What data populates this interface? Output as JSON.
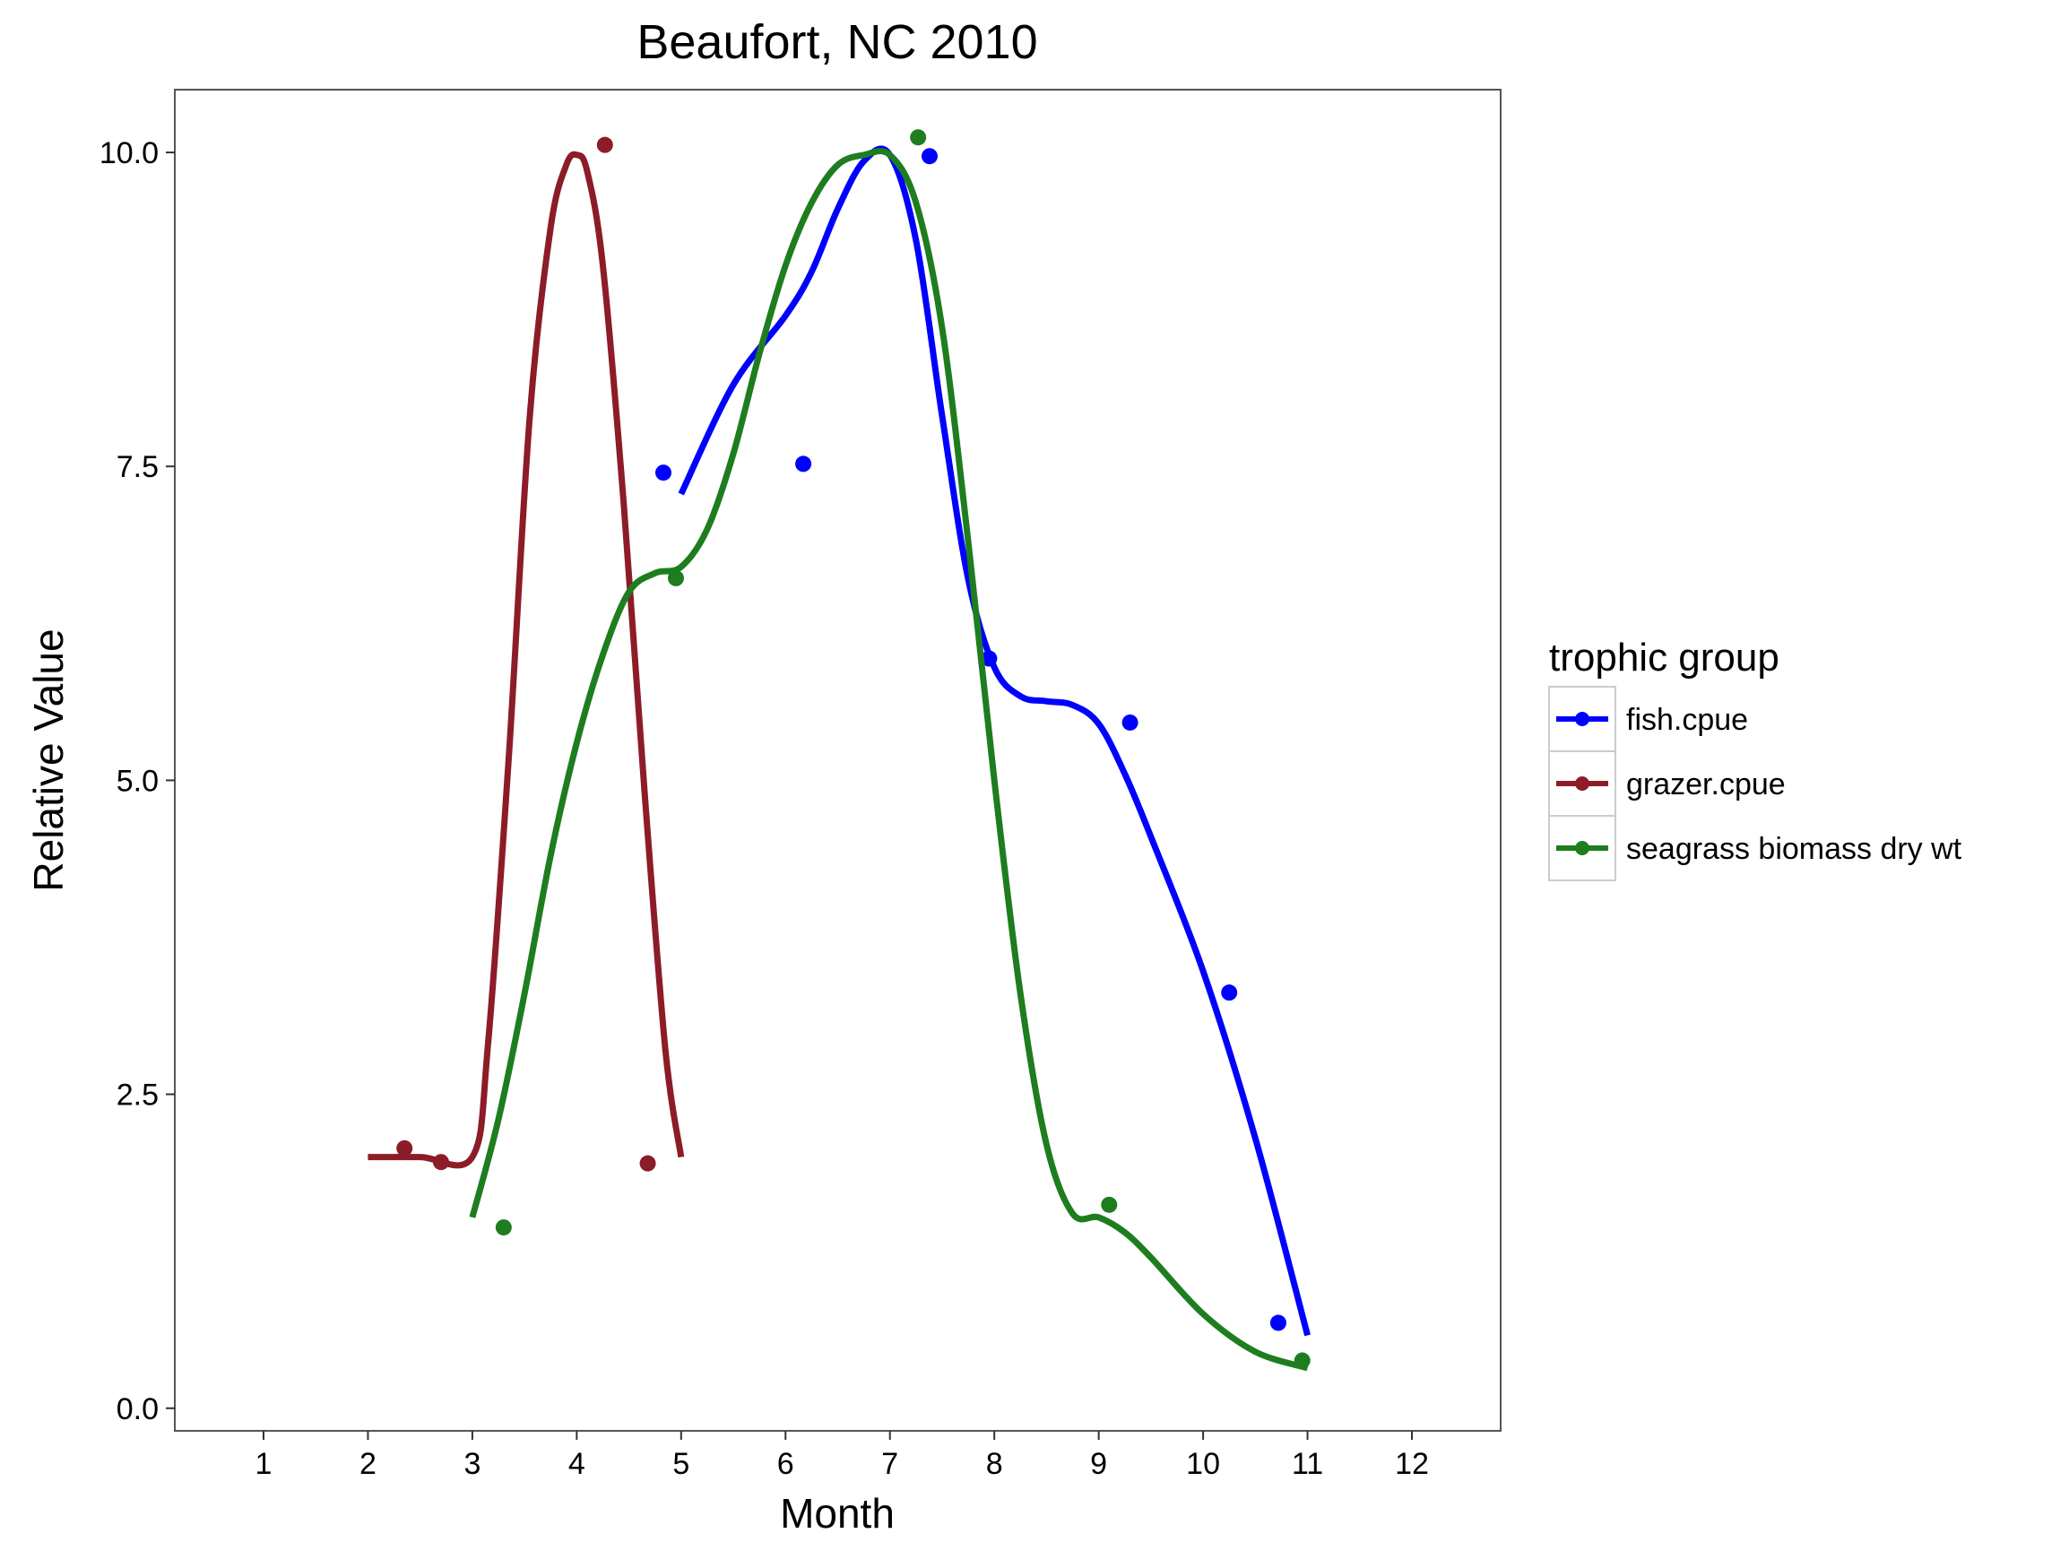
{
  "chart_data": {
    "type": "line",
    "title": "Beaufort, NC 2010",
    "xlabel": "Month",
    "ylabel": "Relative Value",
    "xlim": [
      0.15,
      12.85
    ],
    "ylim": [
      -0.18,
      10.5
    ],
    "x_ticks": [
      1,
      2,
      3,
      4,
      5,
      6,
      7,
      8,
      9,
      10,
      11,
      12
    ],
    "x_tick_labels": [
      "1",
      "2",
      "3",
      "4",
      "5",
      "6",
      "7",
      "8",
      "9",
      "10",
      "11",
      "12"
    ],
    "y_ticks": [
      0,
      2.5,
      5,
      7.5,
      10
    ],
    "y_tick_labels": [
      "0.0",
      "2.5",
      "5.0",
      "7.5",
      "10.0"
    ],
    "grid": false,
    "legend": {
      "title": "trophic group",
      "position": "right"
    },
    "series": [
      {
        "name": "fish.cpue",
        "color": "#0000ff",
        "points": [
          [
            4.83,
            7.45
          ],
          [
            6.17,
            7.52
          ],
          [
            7.38,
            9.97
          ],
          [
            7.95,
            5.97
          ],
          [
            9.3,
            5.46
          ],
          [
            10.25,
            3.31
          ],
          [
            10.72,
            0.68
          ]
        ],
        "curve": [
          [
            5.0,
            7.28
          ],
          [
            5.5,
            8.15
          ],
          [
            6.0,
            8.7
          ],
          [
            6.25,
            9.05
          ],
          [
            6.5,
            9.55
          ],
          [
            6.75,
            9.93
          ],
          [
            7.0,
            9.98
          ],
          [
            7.25,
            9.3
          ],
          [
            7.5,
            7.9
          ],
          [
            7.75,
            6.6
          ],
          [
            8.0,
            5.9
          ],
          [
            8.25,
            5.67
          ],
          [
            8.5,
            5.63
          ],
          [
            8.75,
            5.6
          ],
          [
            9.0,
            5.45
          ],
          [
            9.25,
            5.05
          ],
          [
            9.5,
            4.55
          ],
          [
            10.0,
            3.48
          ],
          [
            10.5,
            2.15
          ],
          [
            11.0,
            0.58
          ]
        ]
      },
      {
        "name": "grazer.cpue",
        "color": "#8c1c28",
        "points": [
          [
            2.35,
            2.07
          ],
          [
            2.7,
            1.96
          ],
          [
            4.27,
            10.06
          ],
          [
            4.68,
            1.95
          ]
        ],
        "curve": [
          [
            2.0,
            2.0
          ],
          [
            2.5,
            2.0
          ],
          [
            3.0,
            2.0
          ],
          [
            3.15,
            2.9
          ],
          [
            3.35,
            5.2
          ],
          [
            3.55,
            7.9
          ],
          [
            3.75,
            9.4
          ],
          [
            3.9,
            9.9
          ],
          [
            4.0,
            9.98
          ],
          [
            4.1,
            9.85
          ],
          [
            4.25,
            9.1
          ],
          [
            4.45,
            7.2
          ],
          [
            4.65,
            4.9
          ],
          [
            4.85,
            2.85
          ],
          [
            5.0,
            2.0
          ]
        ]
      },
      {
        "name": "seagrass biomass dry wt",
        "color": "#1e7d1e",
        "points": [
          [
            3.3,
            1.44
          ],
          [
            4.95,
            6.61
          ],
          [
            7.27,
            10.12
          ],
          [
            9.1,
            1.62
          ],
          [
            10.95,
            0.38
          ]
        ],
        "curve": [
          [
            3.0,
            1.52
          ],
          [
            3.25,
            2.3
          ],
          [
            3.5,
            3.3
          ],
          [
            3.75,
            4.4
          ],
          [
            4.0,
            5.3
          ],
          [
            4.25,
            6.0
          ],
          [
            4.5,
            6.5
          ],
          [
            4.75,
            6.65
          ],
          [
            5.0,
            6.7
          ],
          [
            5.25,
            7.0
          ],
          [
            5.5,
            7.6
          ],
          [
            5.75,
            8.4
          ],
          [
            6.0,
            9.1
          ],
          [
            6.25,
            9.6
          ],
          [
            6.5,
            9.9
          ],
          [
            6.75,
            9.98
          ],
          [
            7.0,
            9.98
          ],
          [
            7.25,
            9.6
          ],
          [
            7.5,
            8.6
          ],
          [
            7.75,
            6.9
          ],
          [
            8.0,
            5.0
          ],
          [
            8.25,
            3.3
          ],
          [
            8.5,
            2.1
          ],
          [
            8.75,
            1.55
          ],
          [
            9.0,
            1.52
          ],
          [
            9.25,
            1.4
          ],
          [
            9.5,
            1.2
          ],
          [
            10.0,
            0.75
          ],
          [
            10.5,
            0.45
          ],
          [
            11.0,
            0.32
          ]
        ]
      }
    ]
  }
}
